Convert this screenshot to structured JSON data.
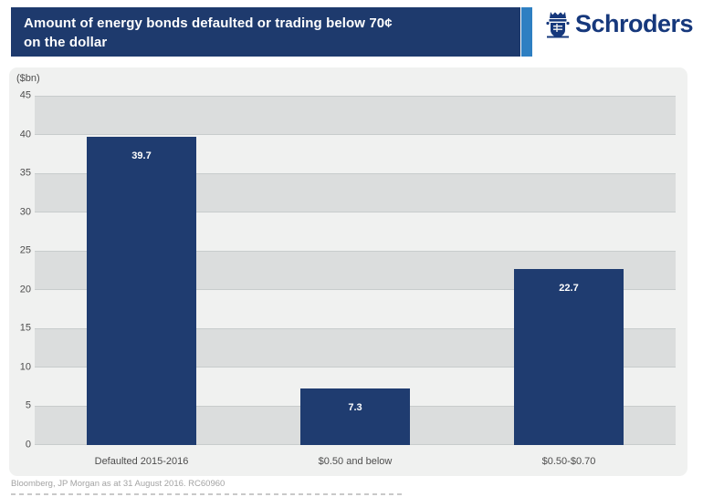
{
  "header": {
    "title_line1": "Amount of energy bonds defaulted or trading below 70¢",
    "title_line2": "on the dollar",
    "brand": "Schroders"
  },
  "chart_data": {
    "type": "bar",
    "title": "Amount of energy bonds defaulted or trading below 70¢ on the dollar",
    "unit_label": "($bn)",
    "categories": [
      "Defaulted 2015-2016",
      "$0.50 and below",
      "$0.50-$0.70"
    ],
    "values": [
      39.7,
      7.3,
      22.7
    ],
    "ylabel": "($bn)",
    "xlabel": "",
    "ylim": [
      0,
      45
    ],
    "ytick_step": 5,
    "grid": "horizontal-banded",
    "legend": "none",
    "bar_labels_shown": true
  },
  "footer": {
    "source": "Bloomberg, JP Morgan as at 31 August 2016. RC60960"
  },
  "colors": {
    "title_bar_navy": "#1e3a6d",
    "accent_blue": "#2e7fc2",
    "brand_navy": "#16387c",
    "bar_navy": "#1f3c70",
    "panel_bg": "#f0f1f0",
    "band_gray": "#dbdddd",
    "grid_line": "#c8cccc",
    "axis_text": "#4d4d4d",
    "footer_text": "#a3a3a3"
  }
}
